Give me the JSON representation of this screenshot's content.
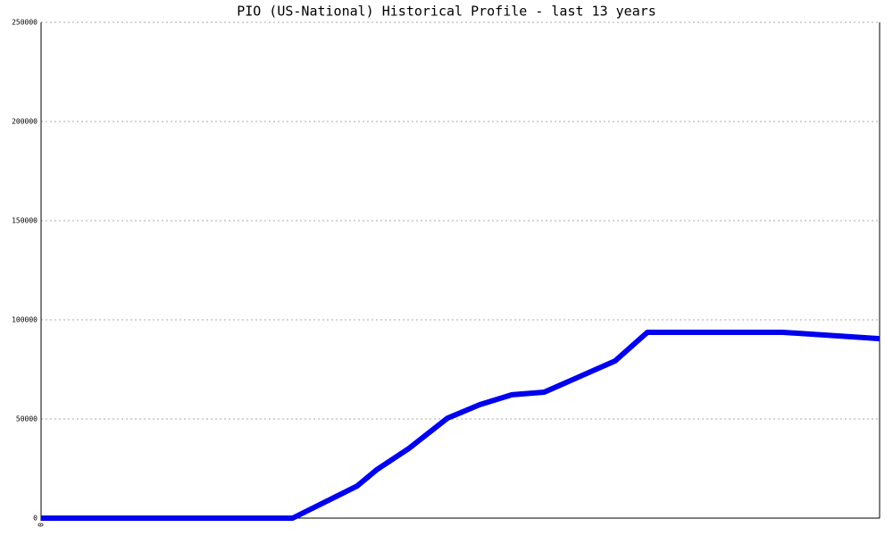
{
  "chart_data": {
    "type": "line",
    "title": "PIO (US-National) Historical Profile - last 13 years",
    "x": [
      0,
      3.9,
      4.9,
      5.2,
      5.7,
      6.3,
      6.8,
      7.3,
      7.8,
      8.9,
      9.4,
      11.5,
      13
    ],
    "series": [
      {
        "name": "PIO",
        "color": "#0000ee",
        "values": [
          0,
          0,
          16200,
          24300,
          35100,
          50400,
          57200,
          62200,
          63500,
          79300,
          93700,
          93700,
          90500
        ]
      }
    ],
    "xlim": [
      0,
      13
    ],
    "xticks": [
      0
    ],
    "ylim": [
      0,
      250000
    ],
    "yticks": [
      0,
      50000,
      100000,
      150000,
      200000,
      250000
    ],
    "grid": true
  }
}
